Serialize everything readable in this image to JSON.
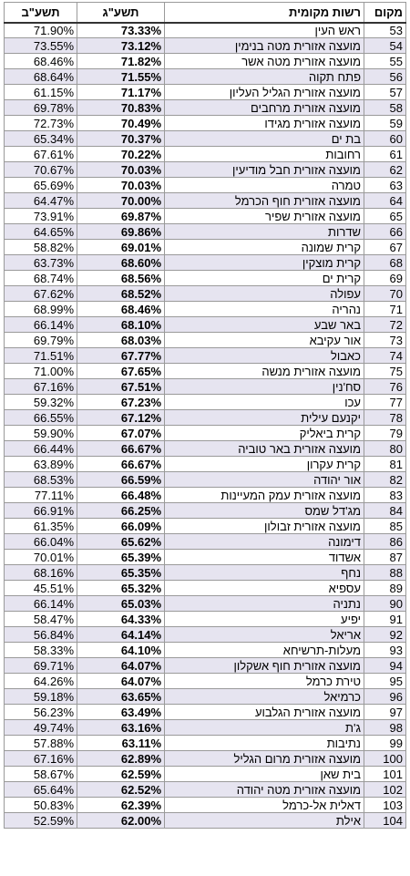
{
  "table": {
    "headers": {
      "prev": "תשע\"ב",
      "curr": "תשע\"ג",
      "name": "רשות מקומית",
      "rank": "מקום"
    },
    "rows": [
      {
        "prev": "71.90%",
        "curr": "73.33%",
        "name": "ראש העין",
        "rank": "53"
      },
      {
        "prev": "73.55%",
        "curr": "73.12%",
        "name": "מועצה אזורית מטה בנימין",
        "rank": "54"
      },
      {
        "prev": "68.46%",
        "curr": "71.82%",
        "name": "מועצה אזורית מטה אשר",
        "rank": "55"
      },
      {
        "prev": "68.64%",
        "curr": "71.55%",
        "name": "פתח תקוה",
        "rank": "56"
      },
      {
        "prev": "61.15%",
        "curr": "71.17%",
        "name": "מועצה אזורית הגליל העליון",
        "rank": "57"
      },
      {
        "prev": "69.78%",
        "curr": "70.83%",
        "name": "מועצה אזורית מרחבים",
        "rank": "58"
      },
      {
        "prev": "72.73%",
        "curr": "70.49%",
        "name": "מועצה אזורית מגידו",
        "rank": "59"
      },
      {
        "prev": "65.34%",
        "curr": "70.37%",
        "name": "בת ים",
        "rank": "60"
      },
      {
        "prev": "67.61%",
        "curr": "70.22%",
        "name": "רחובות",
        "rank": "61"
      },
      {
        "prev": "70.67%",
        "curr": "70.03%",
        "name": "מועצה אזורית חבל מודיעין",
        "rank": "62"
      },
      {
        "prev": "65.69%",
        "curr": "70.03%",
        "name": "טמרה",
        "rank": "63"
      },
      {
        "prev": "64.47%",
        "curr": "70.00%",
        "name": "מועצה אזורית חוף הכרמל",
        "rank": "64"
      },
      {
        "prev": "73.91%",
        "curr": "69.87%",
        "name": "מועצה אזורית שפיר",
        "rank": "65"
      },
      {
        "prev": "64.65%",
        "curr": "69.86%",
        "name": "שדרות",
        "rank": "66"
      },
      {
        "prev": "58.82%",
        "curr": "69.01%",
        "name": "קרית שמונה",
        "rank": "67"
      },
      {
        "prev": "63.73%",
        "curr": "68.60%",
        "name": "קרית מוצקין",
        "rank": "68"
      },
      {
        "prev": "68.74%",
        "curr": "68.56%",
        "name": "קרית ים",
        "rank": "69"
      },
      {
        "prev": "67.62%",
        "curr": "68.52%",
        "name": "עפולה",
        "rank": "70"
      },
      {
        "prev": "68.99%",
        "curr": "68.46%",
        "name": "נהריה",
        "rank": "71"
      },
      {
        "prev": "66.14%",
        "curr": "68.10%",
        "name": "באר שבע",
        "rank": "72"
      },
      {
        "prev": "69.79%",
        "curr": "68.03%",
        "name": "אור עקיבא",
        "rank": "73"
      },
      {
        "prev": "71.51%",
        "curr": "67.77%",
        "name": "כאבול",
        "rank": "74"
      },
      {
        "prev": "71.00%",
        "curr": "67.65%",
        "name": "מועצה אזורית מנשה",
        "rank": "75"
      },
      {
        "prev": "67.16%",
        "curr": "67.51%",
        "name": "סח'נין",
        "rank": "76"
      },
      {
        "prev": "59.32%",
        "curr": "67.23%",
        "name": "עכו",
        "rank": "77"
      },
      {
        "prev": "66.55%",
        "curr": "67.12%",
        "name": "יקנעם עילית",
        "rank": "78"
      },
      {
        "prev": "59.90%",
        "curr": "67.07%",
        "name": "קרית ביאליק",
        "rank": "79"
      },
      {
        "prev": "66.44%",
        "curr": "66.67%",
        "name": "מועצה אזורית באר טוביה",
        "rank": "80"
      },
      {
        "prev": "63.89%",
        "curr": "66.67%",
        "name": "קרית עקרון",
        "rank": "81"
      },
      {
        "prev": "68.53%",
        "curr": "66.59%",
        "name": "אור יהודה",
        "rank": "82"
      },
      {
        "prev": "77.11%",
        "curr": "66.48%",
        "name": "מועצה אזורית עמק המעיינות",
        "rank": "83"
      },
      {
        "prev": "66.91%",
        "curr": "66.25%",
        "name": "מג'דל שמס",
        "rank": "84"
      },
      {
        "prev": "61.35%",
        "curr": "66.09%",
        "name": "מועצה אזורית זבולון",
        "rank": "85"
      },
      {
        "prev": "66.04%",
        "curr": "65.62%",
        "name": "דימונה",
        "rank": "86"
      },
      {
        "prev": "70.01%",
        "curr": "65.39%",
        "name": "אשדוד",
        "rank": "87"
      },
      {
        "prev": "68.16%",
        "curr": "65.35%",
        "name": "נחף",
        "rank": "88"
      },
      {
        "prev": "45.51%",
        "curr": "65.32%",
        "name": "עספיא",
        "rank": "89"
      },
      {
        "prev": "66.14%",
        "curr": "65.03%",
        "name": "נתניה",
        "rank": "90"
      },
      {
        "prev": "58.47%",
        "curr": "64.33%",
        "name": "יפיע",
        "rank": "91"
      },
      {
        "prev": "56.84%",
        "curr": "64.14%",
        "name": "אריאל",
        "rank": "92"
      },
      {
        "prev": "58.33%",
        "curr": "64.10%",
        "name": "מעלות-תרשיחא",
        "rank": "93"
      },
      {
        "prev": "69.71%",
        "curr": "64.07%",
        "name": "מועצה אזורית חוף אשקלון",
        "rank": "94"
      },
      {
        "prev": "64.26%",
        "curr": "64.07%",
        "name": "טירת כרמל",
        "rank": "95"
      },
      {
        "prev": "59.18%",
        "curr": "63.65%",
        "name": "כרמיאל",
        "rank": "96"
      },
      {
        "prev": "56.23%",
        "curr": "63.49%",
        "name": "מועצה אזורית הגלבוע",
        "rank": "97"
      },
      {
        "prev": "49.74%",
        "curr": "63.16%",
        "name": "ג'ת",
        "rank": "98"
      },
      {
        "prev": "57.88%",
        "curr": "63.11%",
        "name": "נתיבות",
        "rank": "99"
      },
      {
        "prev": "67.16%",
        "curr": "62.89%",
        "name": "מועצה אזורית מרום הגליל",
        "rank": "100"
      },
      {
        "prev": "58.67%",
        "curr": "62.59%",
        "name": "בית שאן",
        "rank": "101"
      },
      {
        "prev": "65.64%",
        "curr": "62.52%",
        "name": "מועצה אזורית מטה יהודה",
        "rank": "102"
      },
      {
        "prev": "50.83%",
        "curr": "62.39%",
        "name": "דאלית אל-כרמל",
        "rank": "103"
      },
      {
        "prev": "52.59%",
        "curr": "62.00%",
        "name": "אילת",
        "rank": "104"
      }
    ]
  }
}
